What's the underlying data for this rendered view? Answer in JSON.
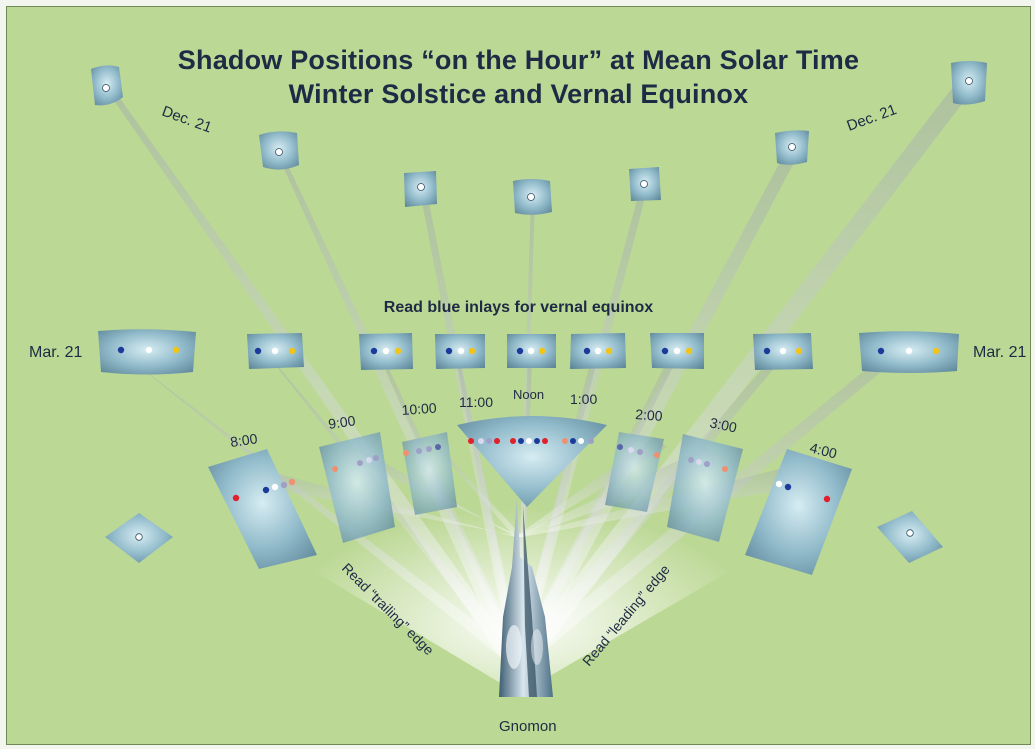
{
  "title": {
    "line1": "Shadow Positions “on the Hour” at Mean Solar Time",
    "line2": "Winter Solstice and Vernal Equinox"
  },
  "labels": {
    "dec_left": "Dec. 21",
    "dec_right": "Dec. 21",
    "mar_left": "Mar. 21",
    "mar_right": "Mar. 21",
    "read_blue": "Read blue inlays for vernal equinox",
    "trailing": "Read “trailing” edge",
    "leading": "Read “leading” edge",
    "gnomon": "Gnomon"
  },
  "hours": [
    "8:00",
    "9:00",
    "10:00",
    "11:00",
    "Noon",
    "1:00",
    "2:00",
    "3:00",
    "4:00"
  ],
  "colors": {
    "background": "#bcd895",
    "stone": "#8fb9c9",
    "title": "#1f2a44",
    "inlay_blue": "#1c3a9a",
    "inlay_white": "#ffffff",
    "inlay_yellow": "#f3c418",
    "inlay_red": "#e0202a",
    "inlay_salmon": "#f09070",
    "inlay_lavender": "#9ea0c8"
  }
}
